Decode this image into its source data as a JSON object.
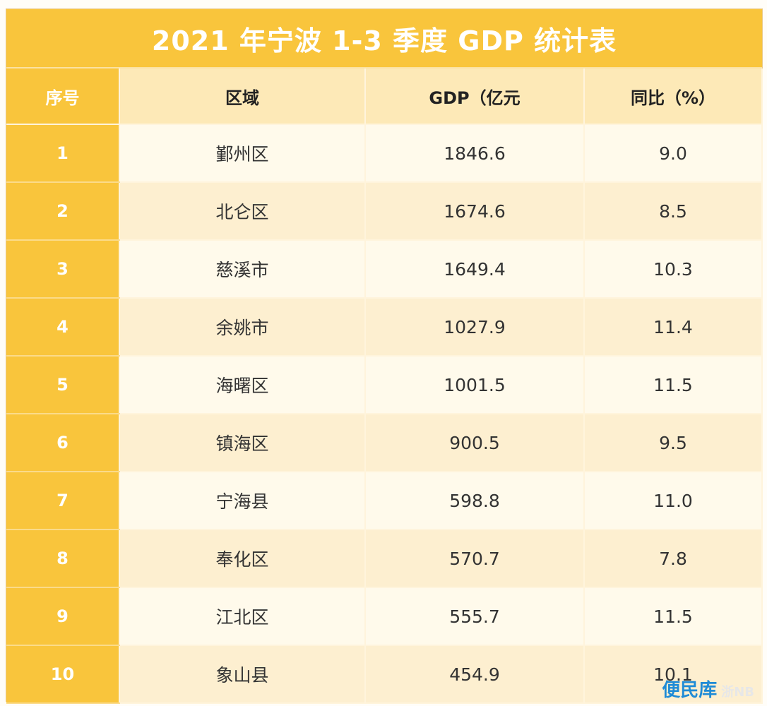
{
  "title": "2021 年宁波 1-3 季度 GDP 统计表",
  "headers": [
    "序号",
    "区域",
    "GDP（亿元",
    "同比（%）"
  ],
  "rows": [
    {
      "idx": "1",
      "region": "鄞州区",
      "gdp": "1846.6",
      "yoy": "9.0"
    },
    {
      "idx": "2",
      "region": "北仑区",
      "gdp": "1674.6",
      "yoy": "8.5"
    },
    {
      "idx": "3",
      "region": "慈溪市",
      "gdp": "1649.4",
      "yoy": "10.3"
    },
    {
      "idx": "4",
      "region": "余姚市",
      "gdp": "1027.9",
      "yoy": "11.4"
    },
    {
      "idx": "5",
      "region": "海曙区",
      "gdp": "1001.5",
      "yoy": "11.5"
    },
    {
      "idx": "6",
      "region": "镇海区",
      "gdp": "900.5",
      "yoy": "9.5"
    },
    {
      "idx": "7",
      "region": "宁海县",
      "gdp": "598.8",
      "yoy": "11.0"
    },
    {
      "idx": "8",
      "region": "奉化区",
      "gdp": "570.7",
      "yoy": "7.8"
    },
    {
      "idx": "9",
      "region": "江北区",
      "gdp": "555.7",
      "yoy": "11.5"
    },
    {
      "idx": "10",
      "region": "象山县",
      "gdp": "454.9",
      "yoy": "10.1"
    }
  ],
  "watermark": {
    "main": "便民库",
    "sub": "浙NB"
  },
  "colors": {
    "header_gold": "#f9c53c",
    "header_light": "#fde9b7",
    "row_light": "#fffaeb",
    "row_dark": "#fdefd0",
    "watermark": "#1f8bd6"
  }
}
